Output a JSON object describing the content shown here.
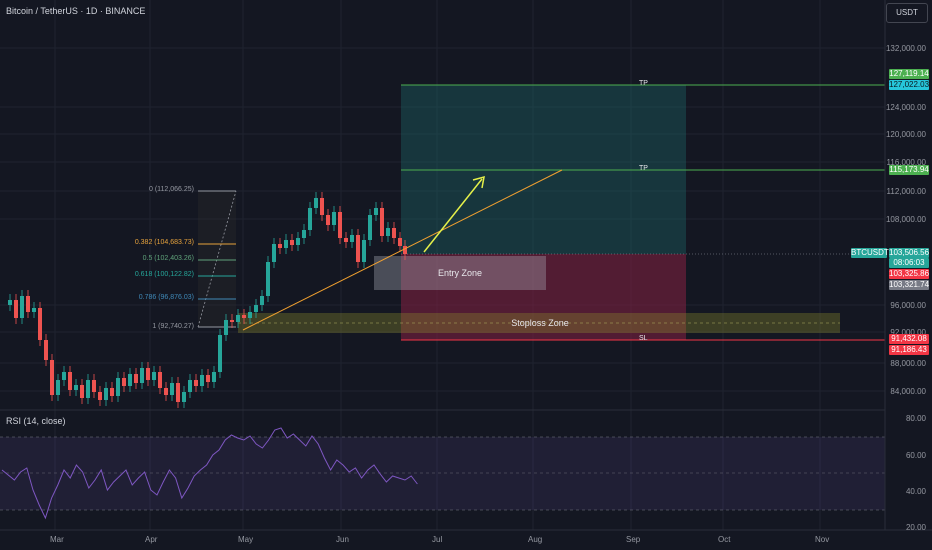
{
  "header": {
    "symbol_title": "Bitcoin / TetherUS · 1D · BINANCE",
    "currency_button": "USDT"
  },
  "price_axis": [
    "132,000.00",
    "124,000.00",
    "120,000.00",
    "116,000.00",
    "112,000.00",
    "108,000.00",
    "96,000.00",
    "92,000.00",
    "88,000.00",
    "84,000.00"
  ],
  "rsi_axis": [
    "80.00",
    "60.00",
    "40.00",
    "20.00"
  ],
  "time_axis": [
    "Mar",
    "Apr",
    "May",
    "Jun",
    "Jul",
    "Aug",
    "Sep",
    "Oct",
    "Nov"
  ],
  "badges": {
    "tp1_a": "127,119.14",
    "tp1_b": "127,022.03",
    "tp2": "115,173.94",
    "symbol": "BTCUSDT",
    "last_price": "103,506.56",
    "countdown": "08:06:03",
    "price_red": "103,325.86",
    "price_gray": "103,321.74",
    "sl_a": "91,432.08",
    "sl_b": "91,186.43"
  },
  "fib_levels": [
    {
      "label": "0 (112,066.25)",
      "color": "#9598a1"
    },
    {
      "label": "0.382 (104,683.73)",
      "color": "#e6a23c"
    },
    {
      "label": "0.5 (102,403.26)",
      "color": "#5fa27a"
    },
    {
      "label": "0.618 (100,122.82)",
      "color": "#26a69a"
    },
    {
      "label": "0.786 (96,876.03)",
      "color": "#3f89b8"
    },
    {
      "label": "1 (92,740.27)",
      "color": "#9598a1"
    }
  ],
  "annotations": {
    "entry_zone": "Entry Zone",
    "stoploss_zone": "Stoploss Zone",
    "tp_label": "TP",
    "sl_label": "SL"
  },
  "rsi_title": "RSI (14, close)",
  "colors": {
    "background": "#141722",
    "up_candle": "#26a69a",
    "down_candle": "#ef5350",
    "tp_green": "#4caf50",
    "tp_cyan": "#26c6da",
    "sl_red": "#f23645",
    "rsi_line": "#7e57c2",
    "trendline": "#f0a030",
    "arrow": "#e4f04a"
  }
}
